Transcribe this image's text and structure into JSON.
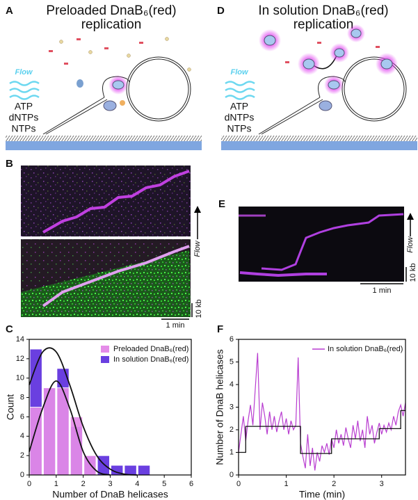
{
  "panels": {
    "A": {
      "label": "A",
      "title": [
        "Preloaded DnaB₆(red)",
        "replication"
      ],
      "flow": "Flow",
      "reagents": [
        "ATP",
        "dNTPs",
        "NTPs"
      ]
    },
    "D": {
      "label": "D",
      "title": [
        "In solution DnaB₆(red)",
        "replication"
      ],
      "flow": "Flow",
      "reagents": [
        "ATP",
        "dNTPs",
        "NTPs"
      ]
    },
    "B": {
      "label": "B",
      "flow": "Flow",
      "time_scale": "1 min",
      "length_scale": "10 kb"
    },
    "E": {
      "label": "E",
      "flow": "Flow",
      "time_scale": "1 min",
      "length_scale": "10 kb"
    },
    "C": {
      "label": "C"
    },
    "F": {
      "label": "F"
    }
  },
  "chart_data": [
    {
      "type": "histogram",
      "xlabel": "Number of DnaB helicases",
      "ylabel": "Count",
      "bins": [
        0,
        0.5,
        1,
        1.5,
        2,
        2.5,
        3,
        3.5,
        4,
        4.5,
        5
      ],
      "series": [
        {
          "name": "In solution DnaB₆(red)",
          "color": "#6a3fe0",
          "values": [
            13,
            9,
            11,
            5,
            2,
            2,
            1,
            1,
            1,
            0
          ]
        },
        {
          "name": "Preloaded DnaB₆(red)",
          "color": "#e48ce8",
          "values": [
            7,
            9,
            9,
            6,
            2,
            0,
            0,
            0,
            0,
            0
          ]
        }
      ],
      "fit_curves": [
        {
          "color": "#111111",
          "x": [
            0,
            0.5,
            1,
            1.5,
            2,
            2.5,
            3,
            3.5,
            4
          ],
          "values": [
            9.3,
            12.7,
            12.7,
            9.3,
            5.0,
            2.0,
            0.6,
            0.1,
            0
          ]
        },
        {
          "color": "#111111",
          "x": [
            0,
            0.5,
            1,
            1.5,
            2,
            2.5,
            3
          ],
          "values": [
            2.4,
            6.9,
            9.7,
            6.9,
            2.4,
            0.4,
            0
          ]
        }
      ],
      "xlim": [
        0,
        6
      ],
      "xticks": [
        0,
        1,
        2,
        3,
        4,
        5,
        6
      ],
      "ylim": [
        0,
        14
      ],
      "yticks": [
        0,
        2,
        4,
        6,
        8,
        10,
        12,
        14
      ],
      "legend": "upper right"
    },
    {
      "type": "line",
      "xlabel": "Time (min)",
      "ylabel": "Number of DnaB helicases",
      "series": [
        {
          "name": "In solution DnaB₆(red)",
          "color": "#b83cd0",
          "x": [
            0,
            0.05,
            0.1,
            0.15,
            0.2,
            0.25,
            0.3,
            0.35,
            0.4,
            0.45,
            0.5,
            0.55,
            0.6,
            0.65,
            0.7,
            0.75,
            0.8,
            0.85,
            0.9,
            0.95,
            1.0,
            1.05,
            1.1,
            1.15,
            1.2,
            1.25,
            1.3,
            1.35,
            1.4,
            1.45,
            1.5,
            1.55,
            1.6,
            1.65,
            1.7,
            1.75,
            1.8,
            1.85,
            1.9,
            1.95,
            2.0,
            2.05,
            2.1,
            2.15,
            2.2,
            2.25,
            2.3,
            2.35,
            2.4,
            2.45,
            2.5,
            2.55,
            2.6,
            2.65,
            2.7,
            2.75,
            2.8,
            2.85,
            2.9,
            2.95,
            3.0,
            3.05,
            3.1,
            3.15,
            3.2,
            3.25,
            3.3,
            3.35,
            3.4,
            3.45,
            3.5
          ],
          "values": [
            1.0,
            1.8,
            2.6,
            1.5,
            2.4,
            3.1,
            2.2,
            3.8,
            5.4,
            2.0,
            3.2,
            2.6,
            1.8,
            2.8,
            2.0,
            2.6,
            1.9,
            2.4,
            2.8,
            2.0,
            2.5,
            1.8,
            2.4,
            2.0,
            2.2,
            5.2,
            1.4,
            0.8,
            0.3,
            1.8,
            0.4,
            1.2,
            0.2,
            1.0,
            0.6,
            1.3,
            1.0,
            1.4,
            0.9,
            1.6,
            1.2,
            2.0,
            1.4,
            1.8,
            1.3,
            2.1,
            1.6,
            1.2,
            2.2,
            1.6,
            2.4,
            1.5,
            2.0,
            1.2,
            2.6,
            1.8,
            2.2,
            1.4,
            1.9,
            2.3,
            1.8,
            2.2,
            1.9,
            2.3,
            2.0,
            2.6,
            2.2,
            2.8,
            3.1,
            2.6,
            3.2
          ]
        }
      ],
      "fit_steps": {
        "color": "#111111",
        "x": [
          0,
          0.15,
          0.15,
          1.3,
          1.3,
          1.95,
          1.95,
          2.95,
          2.95,
          3.4,
          3.4,
          3.5
        ],
        "values": [
          1,
          1,
          2.15,
          2.15,
          0.95,
          0.95,
          1.6,
          1.6,
          2.05,
          2.05,
          2.85,
          2.85
        ]
      },
      "xlim": [
        0,
        3.5
      ],
      "xticks": [
        0,
        1,
        2,
        3
      ],
      "ylim": [
        0,
        6
      ],
      "yticks": [
        0,
        1,
        2,
        3,
        4,
        5,
        6
      ],
      "legend": "upper right"
    }
  ]
}
